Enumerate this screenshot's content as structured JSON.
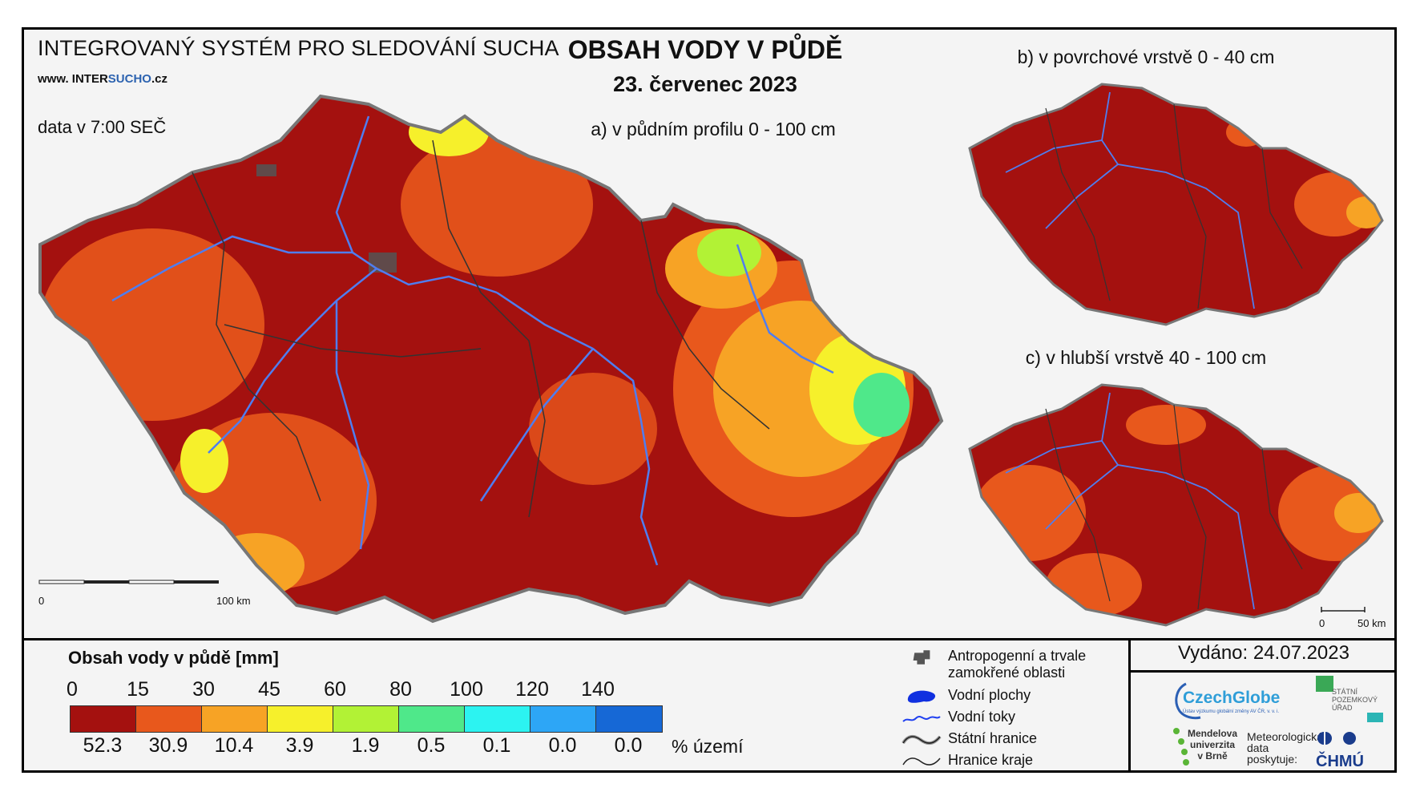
{
  "header": {
    "system_title": "INTEGROVANÝ SYSTÉM PRO SLEDOVÁNÍ SUCHA",
    "website_prefix": "www. INTER",
    "website_hl": "SUCHO",
    "website_suffix": ".cz",
    "data_time": "data v 7:00 SEČ",
    "main_title": "OBSAH VODY V PŮDĚ",
    "date": "23. červenec 2023"
  },
  "maps": {
    "a_title": "a) v půdním profilu 0 - 100 cm",
    "b_title": "b) v povrchové vrstvě 0 - 40 cm",
    "c_title": "c) v hlubší vrstvě 40 - 100 cm",
    "scale_a_start": "0",
    "scale_a_end": "100 km",
    "scale_c_start": "0",
    "scale_c_end": "50 km"
  },
  "legend": {
    "title": "Obsah vody v půdě  [mm]",
    "ticks": [
      "0",
      "15",
      "30",
      "45",
      "60",
      "80",
      "100",
      "120",
      "140"
    ],
    "colors": [
      "#a4110f",
      "#e8581c",
      "#f7a325",
      "#f6f02b",
      "#b2f235",
      "#4fe88a",
      "#2cf3f1",
      "#2da6f6",
      "#1668d6"
    ],
    "percent_values": [
      "52.3",
      "30.9",
      "10.4",
      "3.9",
      "1.9",
      "0.5",
      "0.1",
      "0.0",
      "0.0"
    ],
    "percent_unit": "% území"
  },
  "symbols": {
    "anthropogenic": "Antropogenní a trvale",
    "anthropogenic_2": "zamokřené oblasti",
    "water_bodies": "Vodní plochy",
    "water_streams": "Vodní toky",
    "state_border": "Státní hranice",
    "region_border": "Hranice kraje"
  },
  "issued": "Vydáno: 24.07.2023",
  "logos": {
    "czechglobe": "CzechGlobe",
    "czechglobe_sub": "Ústav výzkumu globální změny AV ČR, v. v. i.",
    "spu_1": "STÁTNÍ",
    "spu_2": "POZEMKOVÝ",
    "spu_3": "ÚŘAD",
    "mendel_1": "Mendelova",
    "mendel_2": "univerzita",
    "mendel_3": "v Brně",
    "meteo_1": "Meteorologická",
    "meteo_2": "data",
    "meteo_3": "poskytuje:",
    "chmu": "ČHMÚ"
  }
}
